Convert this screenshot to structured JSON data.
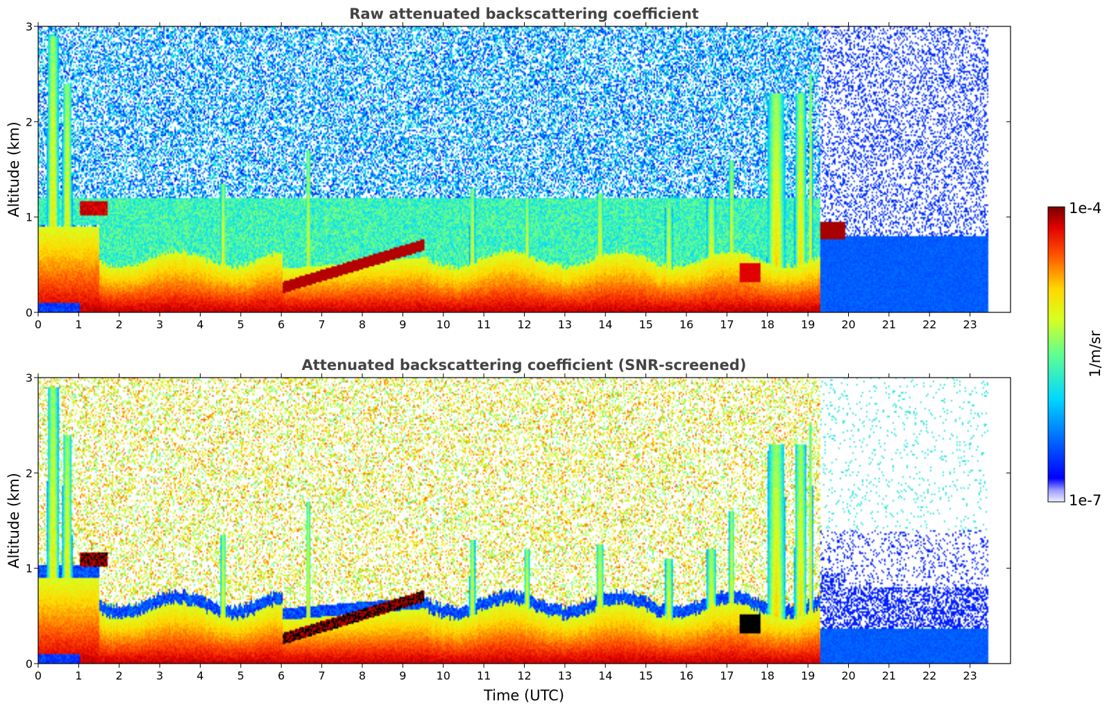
{
  "chart_data": [
    {
      "type": "heatmap",
      "title": "Raw attenuated backscattering coefficient",
      "xlabel": "",
      "ylabel": "Altitude (km)",
      "xlim": [
        0,
        24
      ],
      "ylim": [
        0,
        3
      ],
      "xticks": [
        "0",
        "1",
        "2",
        "3",
        "4",
        "5",
        "6",
        "7",
        "8",
        "9",
        "10",
        "11",
        "12",
        "13",
        "14",
        "15",
        "16",
        "17",
        "18",
        "19",
        "20",
        "21",
        "22",
        "23"
      ],
      "yticks": [
        "0",
        "1",
        "2",
        "3"
      ],
      "data_extent_x": [
        0,
        23.45
      ],
      "grid": false,
      "features": [
        {
          "time_range": [
            0,
            1.5
          ],
          "altitude_top": 2.9,
          "description": "strong near-surface signal with plumes"
        },
        {
          "time_range": [
            1.0,
            1.7
          ],
          "altitude": 1.1,
          "description": "elevated red layer near 1 km"
        },
        {
          "time_range": [
            1.5,
            17.7
          ],
          "altitude_top": 0.5,
          "description": "boundary layer 0-0.5 km"
        },
        {
          "time_range": [
            6.0,
            9.5
          ],
          "altitude_range": [
            0.2,
            0.8
          ],
          "description": "rising dark-red aerosol layer"
        },
        {
          "time_range": [
            17.8,
            19.1
          ],
          "altitude_top": 2.3,
          "description": "tall convective plumes"
        },
        {
          "time_range": [
            19.1,
            19.9
          ],
          "altitude": 0.85,
          "description": "dark-red cloud layer"
        },
        {
          "time_range": [
            19.3,
            23.45
          ],
          "altitude_top": 0.8,
          "description": "low-signal blue region"
        }
      ]
    },
    {
      "type": "heatmap",
      "title": "Attenuated backscattering coefficient (SNR-screened)",
      "xlabel": "Time (UTC)",
      "ylabel": "Altitude (km)",
      "xlim": [
        0,
        24
      ],
      "ylim": [
        0,
        3
      ],
      "xticks": [
        "0",
        "1",
        "2",
        "3",
        "4",
        "5",
        "6",
        "7",
        "8",
        "9",
        "10",
        "11",
        "12",
        "13",
        "14",
        "15",
        "16",
        "17",
        "18",
        "19",
        "20",
        "21",
        "22",
        "23"
      ],
      "yticks": [
        "0",
        "1",
        "2",
        "3"
      ],
      "data_extent_x": [
        0,
        23.45
      ],
      "grid": false
    }
  ],
  "colorbar": {
    "label": "1/m/sr",
    "max_label": "1e-4",
    "min_label": "1e-7",
    "scale": "log",
    "range": [
      1e-07,
      0.0001
    ],
    "colormap": "jet"
  }
}
